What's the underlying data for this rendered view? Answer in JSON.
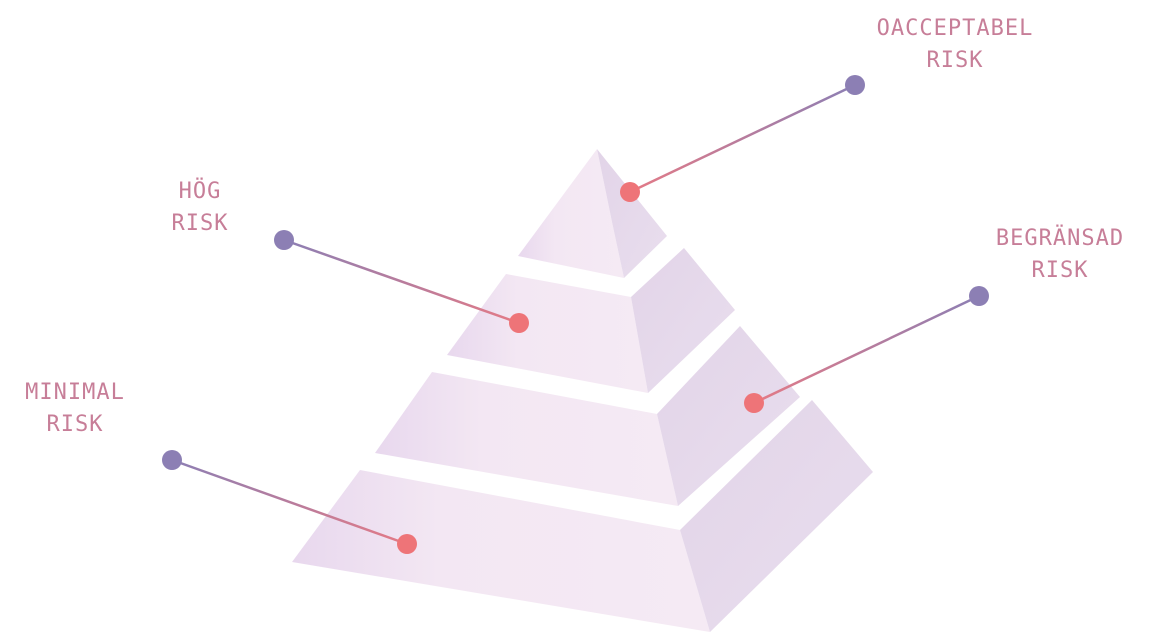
{
  "diagram": {
    "type": "risk-pyramid",
    "tiers": [
      {
        "id": "unacceptable",
        "line1": "OACCEPTABEL",
        "line2": "RISK"
      },
      {
        "id": "high",
        "line1": "HÖG",
        "line2": "RISK"
      },
      {
        "id": "limited",
        "line1": "BEGRÄNSAD",
        "line2": "RISK"
      },
      {
        "id": "minimal",
        "line1": "MINIMAL",
        "line2": "RISK"
      }
    ]
  },
  "colors": {
    "label": "#c77e98",
    "dot_outer": "#8c7fb4",
    "dot_inner": "#ee7478",
    "face_front": "#f3e6f2",
    "face_side": "#e4d6ea",
    "background": "#ffffff"
  }
}
